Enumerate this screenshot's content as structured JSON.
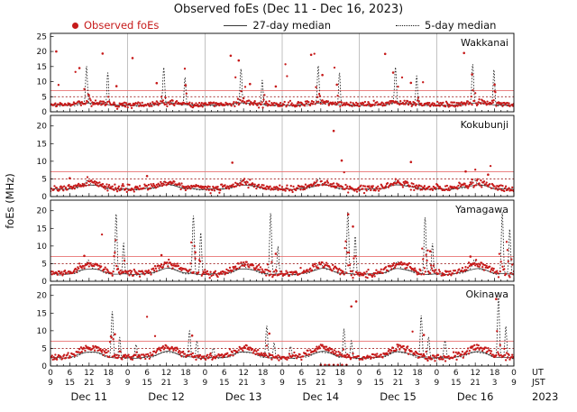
{
  "chart_data": {
    "type": "scatter",
    "title": "Observed foEs (Dec 11 - Dec 16, 2023)",
    "ylabel": "foEs (MHz)",
    "legend": {
      "observed": "Observed foEs",
      "median27": "27-day median",
      "median5": "5-day median"
    },
    "days": [
      "Dec 11",
      "Dec 12",
      "Dec 13",
      "Dec 14",
      "Dec 15",
      "Dec 16"
    ],
    "x_axis": {
      "ut_labels": [
        "0",
        "6",
        "12",
        "18",
        "0",
        "6",
        "12",
        "18",
        "0",
        "6",
        "12",
        "18",
        "0",
        "6",
        "12",
        "18",
        "0",
        "6",
        "12",
        "18",
        "0",
        "6",
        "12",
        "18",
        "0"
      ],
      "jst_labels": [
        "9",
        "15",
        "21",
        "3",
        "9",
        "15",
        "21",
        "3",
        "9",
        "15",
        "21",
        "3",
        "9",
        "15",
        "21",
        "3",
        "9",
        "15",
        "21",
        "3",
        "9",
        "15",
        "21",
        "3",
        "9"
      ],
      "ut_unit": "UT",
      "jst_unit": "JST",
      "year": "2023"
    },
    "thresholds": {
      "solid_red_line_mhz": 7,
      "dotted_red_line_mhz": 5
    },
    "colors": {
      "observed": "#c61a1a",
      "median27": "#3a3a3a",
      "median5": "#1a1a1a",
      "threshold_solid": "#e87272",
      "threshold_dotted": "#a02020",
      "grid": "#999999"
    },
    "panels": [
      {
        "name": "Wakkanai",
        "ylim": [
          0,
          26
        ],
        "yticks": [
          0,
          5,
          10,
          15,
          20,
          25
        ],
        "seed": 11,
        "m27_base": 2.2,
        "m27_bump": 0.8,
        "m5_base": 2.0,
        "m5_bump": 0.7,
        "obs_base": 2.4,
        "obs_bump": 0.7,
        "outlier_rate": 0.03,
        "outlier_min": 8,
        "outlier_max": 20,
        "gap_rate": 0.02,
        "spikes": [
          {
            "hour": 11.2,
            "sigma": 0.28,
            "heights": [
              12.5,
              12,
              11.5,
              12.5,
              12,
              13
            ]
          },
          {
            "hour": 17.8,
            "sigma": 0.26,
            "heights": [
              11,
              9.5,
              8.5,
              11,
              10,
              12
            ]
          }
        ],
        "notable_points": [
          [
            1.8,
            20.0
          ],
          [
            9.0,
            14.5
          ],
          [
            16.2,
            19.3
          ],
          [
            20.5,
            8.5
          ],
          [
            25.5,
            17.8
          ],
          [
            33.0,
            9.5
          ],
          [
            42.0,
            8.8
          ],
          [
            56.0,
            18.6
          ],
          [
            58.5,
            17.0
          ],
          [
            62.0,
            9.2
          ],
          [
            70.0,
            8.4
          ],
          [
            81.0,
            18.9
          ],
          [
            84.5,
            12.2
          ],
          [
            89.0,
            9.0
          ],
          [
            104.0,
            19.2
          ],
          [
            106.5,
            13.0
          ],
          [
            112.0,
            9.6
          ],
          [
            128.5,
            19.5
          ],
          [
            131.0,
            12.4
          ],
          [
            138.0,
            9.0
          ]
        ]
      },
      {
        "name": "Kokubunji",
        "ylim": [
          0,
          23
        ],
        "yticks": [
          0,
          5,
          10,
          15,
          20
        ],
        "seed": 22,
        "m27_base": 2.1,
        "m27_bump": 1.2,
        "m5_base": 2.0,
        "m5_bump": 1.4,
        "obs_base": 2.3,
        "obs_bump": 1.6,
        "outlier_rate": 0.005,
        "outlier_min": 5,
        "outlier_max": 9,
        "gap_rate": 0.02,
        "spikes": [
          {
            "hour": 11.5,
            "sigma": 0.6,
            "heights": [
              1.3,
              1.0,
              1.5,
              1.8,
              1.2,
              1.5
            ]
          }
        ],
        "notable_points": [
          [
            6.0,
            5.2
          ],
          [
            30.0,
            5.8
          ],
          [
            56.5,
            9.6
          ],
          [
            88.0,
            18.6
          ],
          [
            90.5,
            10.2
          ],
          [
            112.0,
            9.8
          ],
          [
            129.0,
            7.1
          ],
          [
            136.0,
            6.2
          ]
        ]
      },
      {
        "name": "Yamagawa",
        "ylim": [
          0,
          23
        ],
        "yticks": [
          0,
          5,
          10,
          15,
          20
        ],
        "seed": 33,
        "m27_base": 2.0,
        "m27_bump": 1.6,
        "m5_base": 1.9,
        "m5_bump": 1.7,
        "obs_base": 2.2,
        "obs_bump": 2.6,
        "outlier_rate": 0.005,
        "outlier_min": 8,
        "outlier_max": 14,
        "gap_rate": 0.02,
        "spikes": [
          {
            "hour": 20.4,
            "sigma": 0.3,
            "heights": [
              17,
              16.5,
              17.2,
              17.5,
              16,
              17.5
            ]
          },
          {
            "hour": 22.7,
            "sigma": 0.28,
            "heights": [
              9,
              12,
              8,
              11,
              9,
              13
            ]
          },
          {
            "hour": 11.8,
            "sigma": 0.6,
            "heights": [
              2.5,
              2,
              1.5,
              2,
              2,
              2.5
            ]
          }
        ],
        "notable_points": [
          [
            10.5,
            7.2
          ],
          [
            34.5,
            7.4
          ],
          [
            45.0,
            8.2
          ],
          [
            70.0,
            7.8
          ],
          [
            92.5,
            19.0
          ],
          [
            94.0,
            15.5
          ],
          [
            118.0,
            8.5
          ],
          [
            130.5,
            7.0
          ]
        ]
      },
      {
        "name": "Okinawa",
        "ylim": [
          0,
          23
        ],
        "yticks": [
          0,
          5,
          10,
          15,
          20
        ],
        "seed": 44,
        "m27_base": 2.3,
        "m27_bump": 1.8,
        "m5_base": 2.2,
        "m5_bump": 1.8,
        "obs_base": 2.5,
        "obs_bump": 2.8,
        "outlier_rate": 0.006,
        "outlier_min": 8,
        "outlier_max": 16,
        "gap_rate": 0.025,
        "spikes": [
          {
            "hour": 19.2,
            "sigma": 0.3,
            "heights": [
              13,
              7.5,
              9,
              8,
              12,
              17.5
            ]
          },
          {
            "hour": 21.5,
            "sigma": 0.28,
            "heights": [
              6,
              5,
              4.5,
              5,
              6,
              9
            ]
          },
          {
            "hour": 2.6,
            "sigma": 0.35,
            "heights": [
              0,
              4,
              3,
              3.5,
              0,
              5
            ]
          }
        ],
        "notable_points": [
          [
            20.0,
            9.0
          ],
          [
            44.0,
            8.6
          ],
          [
            68.0,
            9.2
          ],
          [
            93.5,
            16.9
          ],
          [
            95.0,
            18.3
          ],
          [
            116.0,
            8.8
          ],
          [
            138.5,
            19.0
          ],
          [
            84.0,
            0.3
          ],
          [
            85.3,
            0.3
          ],
          [
            86.6,
            0.3
          ],
          [
            88.0,
            0.3
          ],
          [
            89.3,
            0.3
          ],
          [
            90.6,
            0.3
          ],
          [
            92.0,
            0.3
          ]
        ]
      }
    ]
  }
}
